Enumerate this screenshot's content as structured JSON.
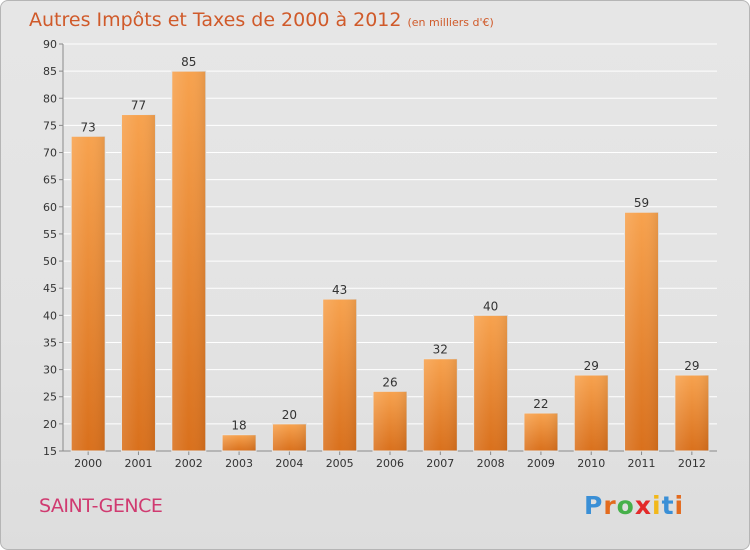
{
  "header": {
    "title": "Autres Impôts et Taxes de 2000 à 2012",
    "unit": "(en milliers d'€)"
  },
  "footer": {
    "commune": "SAINT-GENCE",
    "logo": "Proxiti"
  },
  "colors": {
    "bar_top": "#f7a24e",
    "bar_bottom": "#d9701c",
    "title": "#d05a2a",
    "commune": "#d03a70"
  },
  "chart_data": {
    "type": "bar",
    "categories": [
      "2000",
      "2001",
      "2002",
      "2003",
      "2004",
      "2005",
      "2006",
      "2007",
      "2008",
      "2009",
      "2010",
      "2011",
      "2012"
    ],
    "values": [
      73,
      77,
      85,
      18,
      20,
      43,
      26,
      32,
      40,
      22,
      29,
      59,
      29
    ],
    "ylim": [
      15,
      90
    ],
    "yticks": [
      15,
      20,
      25,
      30,
      35,
      40,
      45,
      50,
      55,
      60,
      65,
      70,
      75,
      80,
      85,
      90
    ],
    "grid": true,
    "xlabel": "",
    "ylabel": ""
  }
}
